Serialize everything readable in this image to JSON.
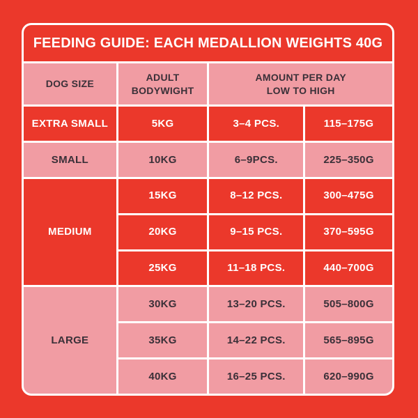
{
  "colors": {
    "background_red": "#EB382B",
    "cell_pink": "#F19CA3",
    "text_dark": "#3A3038",
    "line_white": "#FFFFFF"
  },
  "chart_data": {
    "type": "table",
    "title": "FEEDING GUIDE: EACH MEDALLION WEIGHTS 40G",
    "columns": {
      "dog_size": "DOG SIZE",
      "bodyweight": [
        "ADULT",
        "BODYWIGHT"
      ],
      "amount": [
        "AMOUNT PER DAY",
        "LOW TO HIGH"
      ]
    },
    "groups": [
      {
        "size": "EXTRA SMALL",
        "tone": "red",
        "rows": [
          {
            "kg": "5KG",
            "pcs": "3–4 PCS.",
            "grams": "115–175G"
          }
        ]
      },
      {
        "size": "SMALL",
        "tone": "pink",
        "rows": [
          {
            "kg": "10KG",
            "pcs": "6–9PCS.",
            "grams": "225–350G"
          }
        ]
      },
      {
        "size": "MEDIUM",
        "tone": "red",
        "rows": [
          {
            "kg": "15KG",
            "pcs": "8–12 PCS.",
            "grams": "300–475G"
          },
          {
            "kg": "20KG",
            "pcs": "9–15 PCS.",
            "grams": "370–595G"
          },
          {
            "kg": "25KG",
            "pcs": "11–18 PCS.",
            "grams": "440–700G"
          }
        ]
      },
      {
        "size": "LARGE",
        "tone": "pink",
        "rows": [
          {
            "kg": "30KG",
            "pcs": "13–20 PCS.",
            "grams": "505–800G"
          },
          {
            "kg": "35KG",
            "pcs": "14–22 PCS.",
            "grams": "565–895G"
          },
          {
            "kg": "40KG",
            "pcs": "16–25 PCS.",
            "grams": "620–990G"
          }
        ]
      }
    ]
  }
}
